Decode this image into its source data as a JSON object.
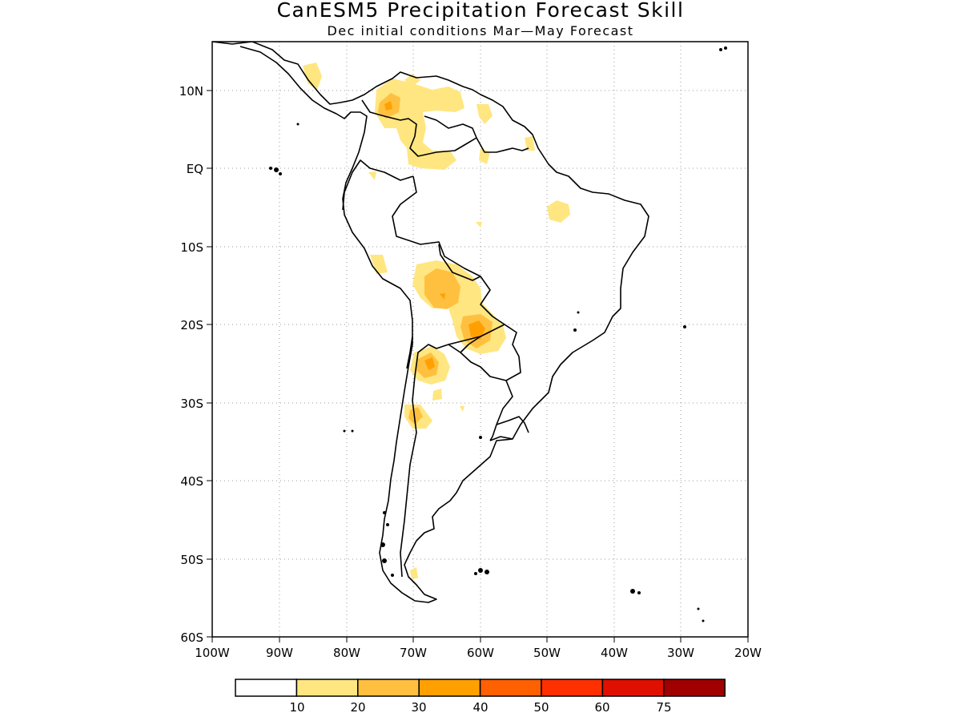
{
  "title": "CanESM5 Precipitation Forecast Skill",
  "subtitle": "Dec initial conditions  Mar—May Forecast",
  "map": {
    "region": "South America",
    "lon_range": [
      -100,
      -20
    ],
    "lat_range": [
      -60,
      15
    ],
    "grid": true,
    "lat_labels": [
      "10N",
      "EQ",
      "10S",
      "20S",
      "30S",
      "40S",
      "50S",
      "60S"
    ],
    "lon_labels": [
      "100W",
      "90W",
      "80W",
      "70W",
      "60W",
      "50W",
      "40W",
      "30W",
      "20W"
    ]
  },
  "legend": {
    "colors": [
      "#ffffff",
      "#ffe680",
      "#ffc040",
      "#ffa000",
      "#ff6000",
      "#ff3000",
      "#e01000",
      "#a00000"
    ],
    "labels": [
      "10",
      "20",
      "30",
      "40",
      "50",
      "60",
      "75"
    ]
  }
}
